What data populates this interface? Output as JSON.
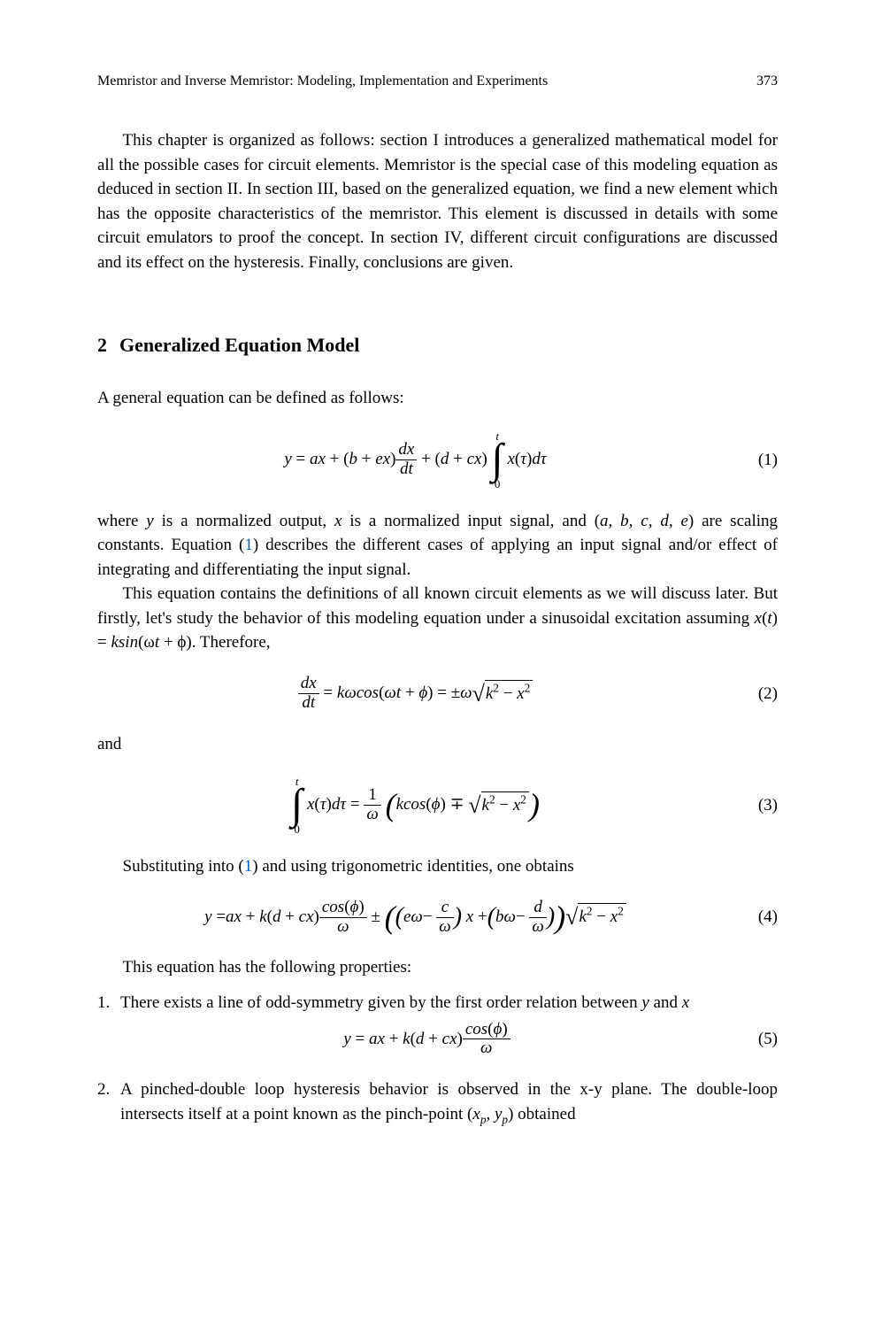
{
  "header": {
    "running_title": "Memristor and Inverse Memristor: Modeling, Implementation and Experiments",
    "page_number": "373"
  },
  "intro_para": "This chapter is organized as follows: section I introduces a generalized mathematical model for all the possible cases for circuit elements. Memristor is the special case of this modeling equation as deduced in section II. In section III, based on the generalized equation, we find a new element which has the opposite characteristics of the memristor. This element is discussed in details with some circuit emulators to proof the concept. In section IV, different circuit configurations are discussed and its effect on the hysteresis. Finally, conclusions are given.",
  "section": {
    "number": "2",
    "title": "Generalized Equation Model",
    "p1": "A general equation can be defined as follows:",
    "eq1_num": "(1)",
    "p2a": "where ",
    "p2b": " is a normalized output, ",
    "p2c": " is a normalized input signal, and (",
    "p2d": ") are scaling constants. Equation (",
    "p2_link": "1",
    "p2e": ") describes the different cases of applying an input signal and/or effect of integrating and differentiating the input signal.",
    "p3a": "This equation contains the definitions of all known circuit elements as we will discuss later. But firstly, let's study the behavior of this modeling equation under a sinusoidal excitation assuming ",
    "p3b": "x",
    "p3c": "(",
    "p3d": "t",
    "p3e": ") = ",
    "p3f": "ksin",
    "p3g": "(ω",
    "p3h": "t",
    "p3i": " + ϕ). Therefore,",
    "eq2_num": "(2)",
    "p4": "and",
    "eq3_num": "(3)",
    "p5a": "Substituting into (",
    "p5_link": "1",
    "p5b": ") and using trigonometric identities, one obtains",
    "eq4_num": "(4)",
    "p6": "This equation has the following properties:",
    "li1a": "There exists a line of odd-symmetry given by the first order relation between ",
    "li1b": "y",
    "li1c": " and ",
    "li1d": "x",
    "eq5_num": "(5)",
    "li2a": "A pinched-double loop hysteresis behavior is observed in the x-y plane. The double-loop intersects itself at a point known as the pinch-point (",
    "li2b": ") obtained"
  },
  "math": {
    "vars": {
      "y": "y",
      "x": "x",
      "a": "a",
      "b": "b",
      "c": "c",
      "d": "d",
      "e": "e",
      "t": "t",
      "tau": "τ",
      "k": "k",
      "omega": "ω",
      "phi": "ϕ",
      "xp": "x",
      "yp": "y",
      "p": "p"
    },
    "labels": {
      "dx": "dx",
      "dt": "dt",
      "dtau": "dτ",
      "cos": "cos",
      "sin": "sin"
    }
  }
}
